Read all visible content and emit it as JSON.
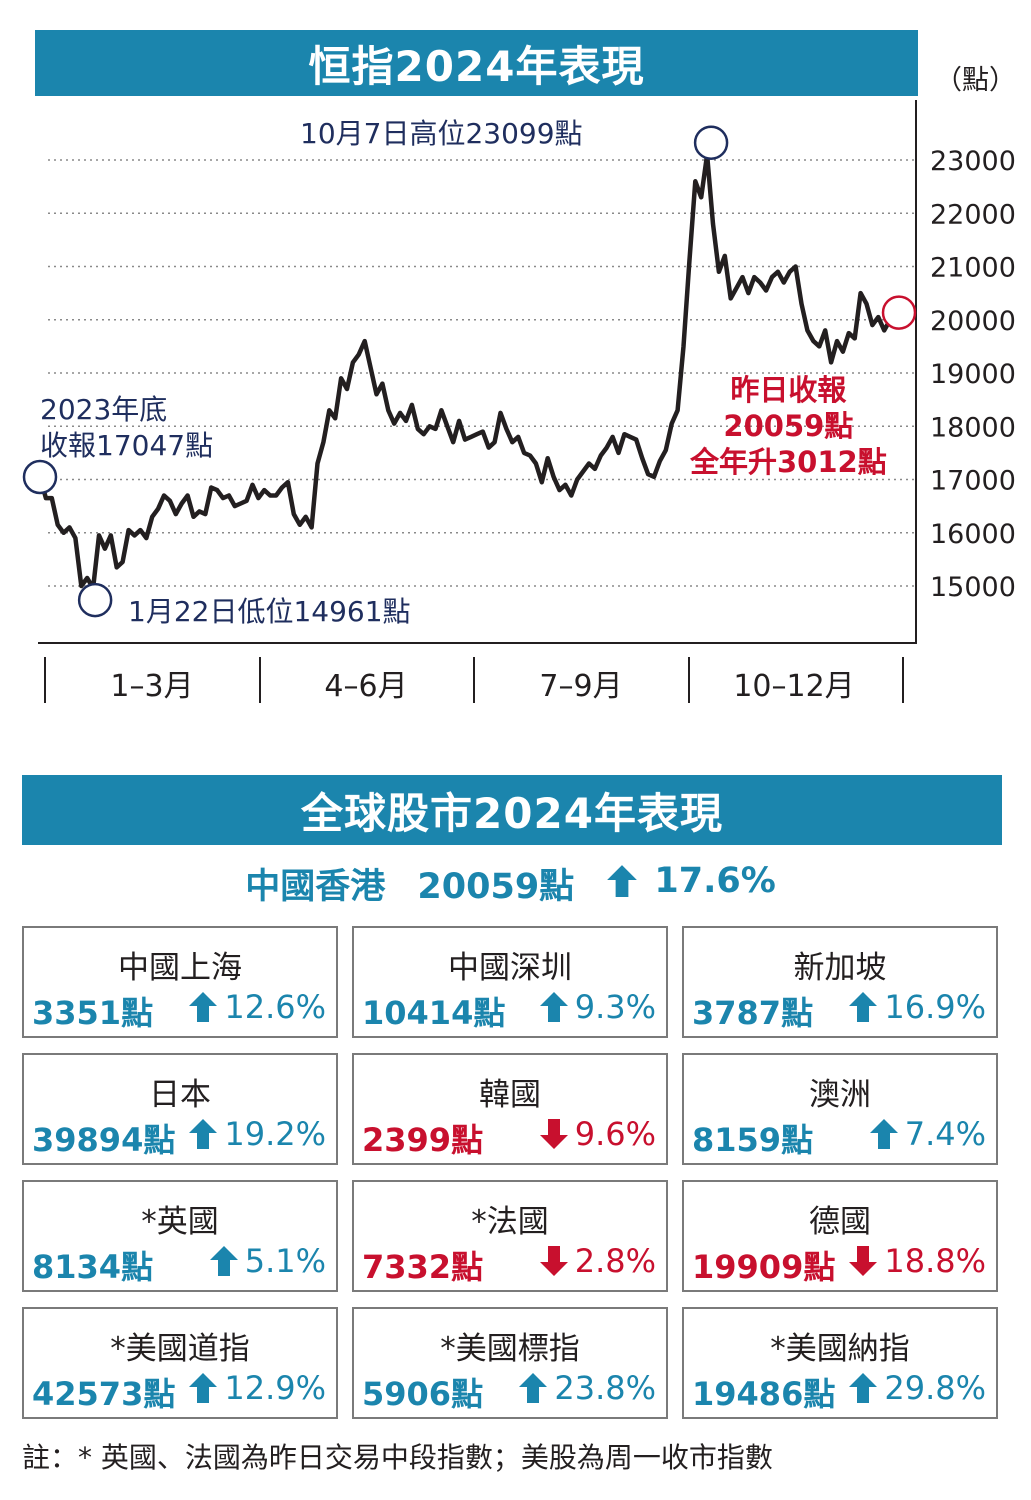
{
  "chart_title": "恒指2024年表現",
  "unit": "（點）",
  "chart_data": {
    "type": "line",
    "title": "恒指2024年表現",
    "ylabel": "點",
    "ylim": [
      14200,
      23500
    ],
    "yticks": [
      15000,
      16000,
      17000,
      18000,
      19000,
      20000,
      21000,
      22000,
      23000
    ],
    "quarter_labels": [
      "1–3月",
      "4–6月",
      "7–9月",
      "10–12月"
    ],
    "grid": true,
    "series": [
      {
        "values": [
          17047,
          16650,
          16650,
          16150,
          16000,
          16100,
          15900,
          15000,
          15150,
          14961,
          15950,
          15700,
          15950,
          15350,
          15450,
          16050,
          15950,
          16050,
          15900,
          16300,
          16450,
          16700,
          16600,
          16350,
          16550,
          16700,
          16300,
          16400,
          16350,
          16850,
          16800,
          16650,
          16700,
          16500,
          16550,
          16600,
          16900,
          16650,
          16800,
          16700,
          16700,
          16850,
          16950,
          16350,
          16150,
          16300,
          16100,
          17300,
          17700,
          18300,
          18150,
          18900,
          18700,
          19200,
          19350,
          19600,
          19100,
          18600,
          18800,
          18300,
          18050,
          18250,
          18100,
          18400,
          17950,
          17850,
          18000,
          17950,
          18300,
          18000,
          17700,
          18100,
          17750,
          17800,
          17850,
          17900,
          17600,
          17700,
          18250,
          17950,
          17700,
          17800,
          17500,
          17450,
          17300,
          16950,
          17400,
          17050,
          16800,
          16900,
          16700,
          17000,
          17150,
          17300,
          17200,
          17450,
          17600,
          17800,
          17500,
          17850,
          17800,
          17750,
          17400,
          17100,
          17050,
          17350,
          17550,
          18050,
          18300,
          19500,
          21100,
          22600,
          22300,
          23099,
          21800,
          20900,
          21200,
          20400,
          20600,
          20800,
          20500,
          20800,
          20700,
          20550,
          20800,
          20900,
          20700,
          20900,
          21000,
          20300,
          19800,
          19600,
          19500,
          19800,
          19200,
          19600,
          19400,
          19750,
          19650,
          20500,
          20300,
          19900,
          20050,
          19800,
          20000,
          20059
        ]
      }
    ],
    "annotations": {
      "start": [
        "2023年底",
        "收報17047點"
      ],
      "low": "1月22日低位14961點",
      "high": "10月7日高位23099點",
      "end": [
        "昨日收報",
        "20059點",
        "全年升3012點"
      ]
    }
  },
  "section_title": "全球股市2024年表現",
  "hk": {
    "name": "中國香港",
    "value": "20059點",
    "change": "17.6%"
  },
  "markets": [
    {
      "name": "中國上海",
      "value": "3351點",
      "change": "12.6%",
      "dir": "up"
    },
    {
      "name": "中國深圳",
      "value": "10414點",
      "change": "9.3%",
      "dir": "up"
    },
    {
      "name": "新加坡",
      "value": "3787點",
      "change": "16.9%",
      "dir": "up"
    },
    {
      "name": "日本",
      "value": "39894點",
      "change": "19.2%",
      "dir": "up"
    },
    {
      "name": "韓國",
      "value": "2399點",
      "change": "9.6%",
      "dir": "down"
    },
    {
      "name": "澳洲",
      "value": "8159點",
      "change": "7.4%",
      "dir": "up"
    },
    {
      "name": "*英國",
      "value": "8134點",
      "change": "5.1%",
      "dir": "up"
    },
    {
      "name": "*法國",
      "value": "7332點",
      "change": "2.8%",
      "dir": "down"
    },
    {
      "name": "德國",
      "value": "19909點",
      "change": "18.8%",
      "dir": "down"
    },
    {
      "name": "*美國道指",
      "value": "42573點",
      "change": "12.9%",
      "dir": "up"
    },
    {
      "name": "*美國標指",
      "value": "5906點",
      "change": "23.8%",
      "dir": "up"
    },
    {
      "name": "*美國納指",
      "value": "19486點",
      "change": "29.8%",
      "dir": "up"
    }
  ],
  "colors": {
    "accent": "#1b85ad",
    "up": "#1b85ad",
    "down": "#c8102e",
    "line": "#231f20",
    "marker_blue": "#1f2e5e",
    "marker_red": "#c8102e"
  },
  "icons": {
    "up": "arrow-up-icon",
    "down": "arrow-down-icon"
  },
  "note": "註：*  英國、法國為昨日交易中段指數；美股為周一收市指數"
}
